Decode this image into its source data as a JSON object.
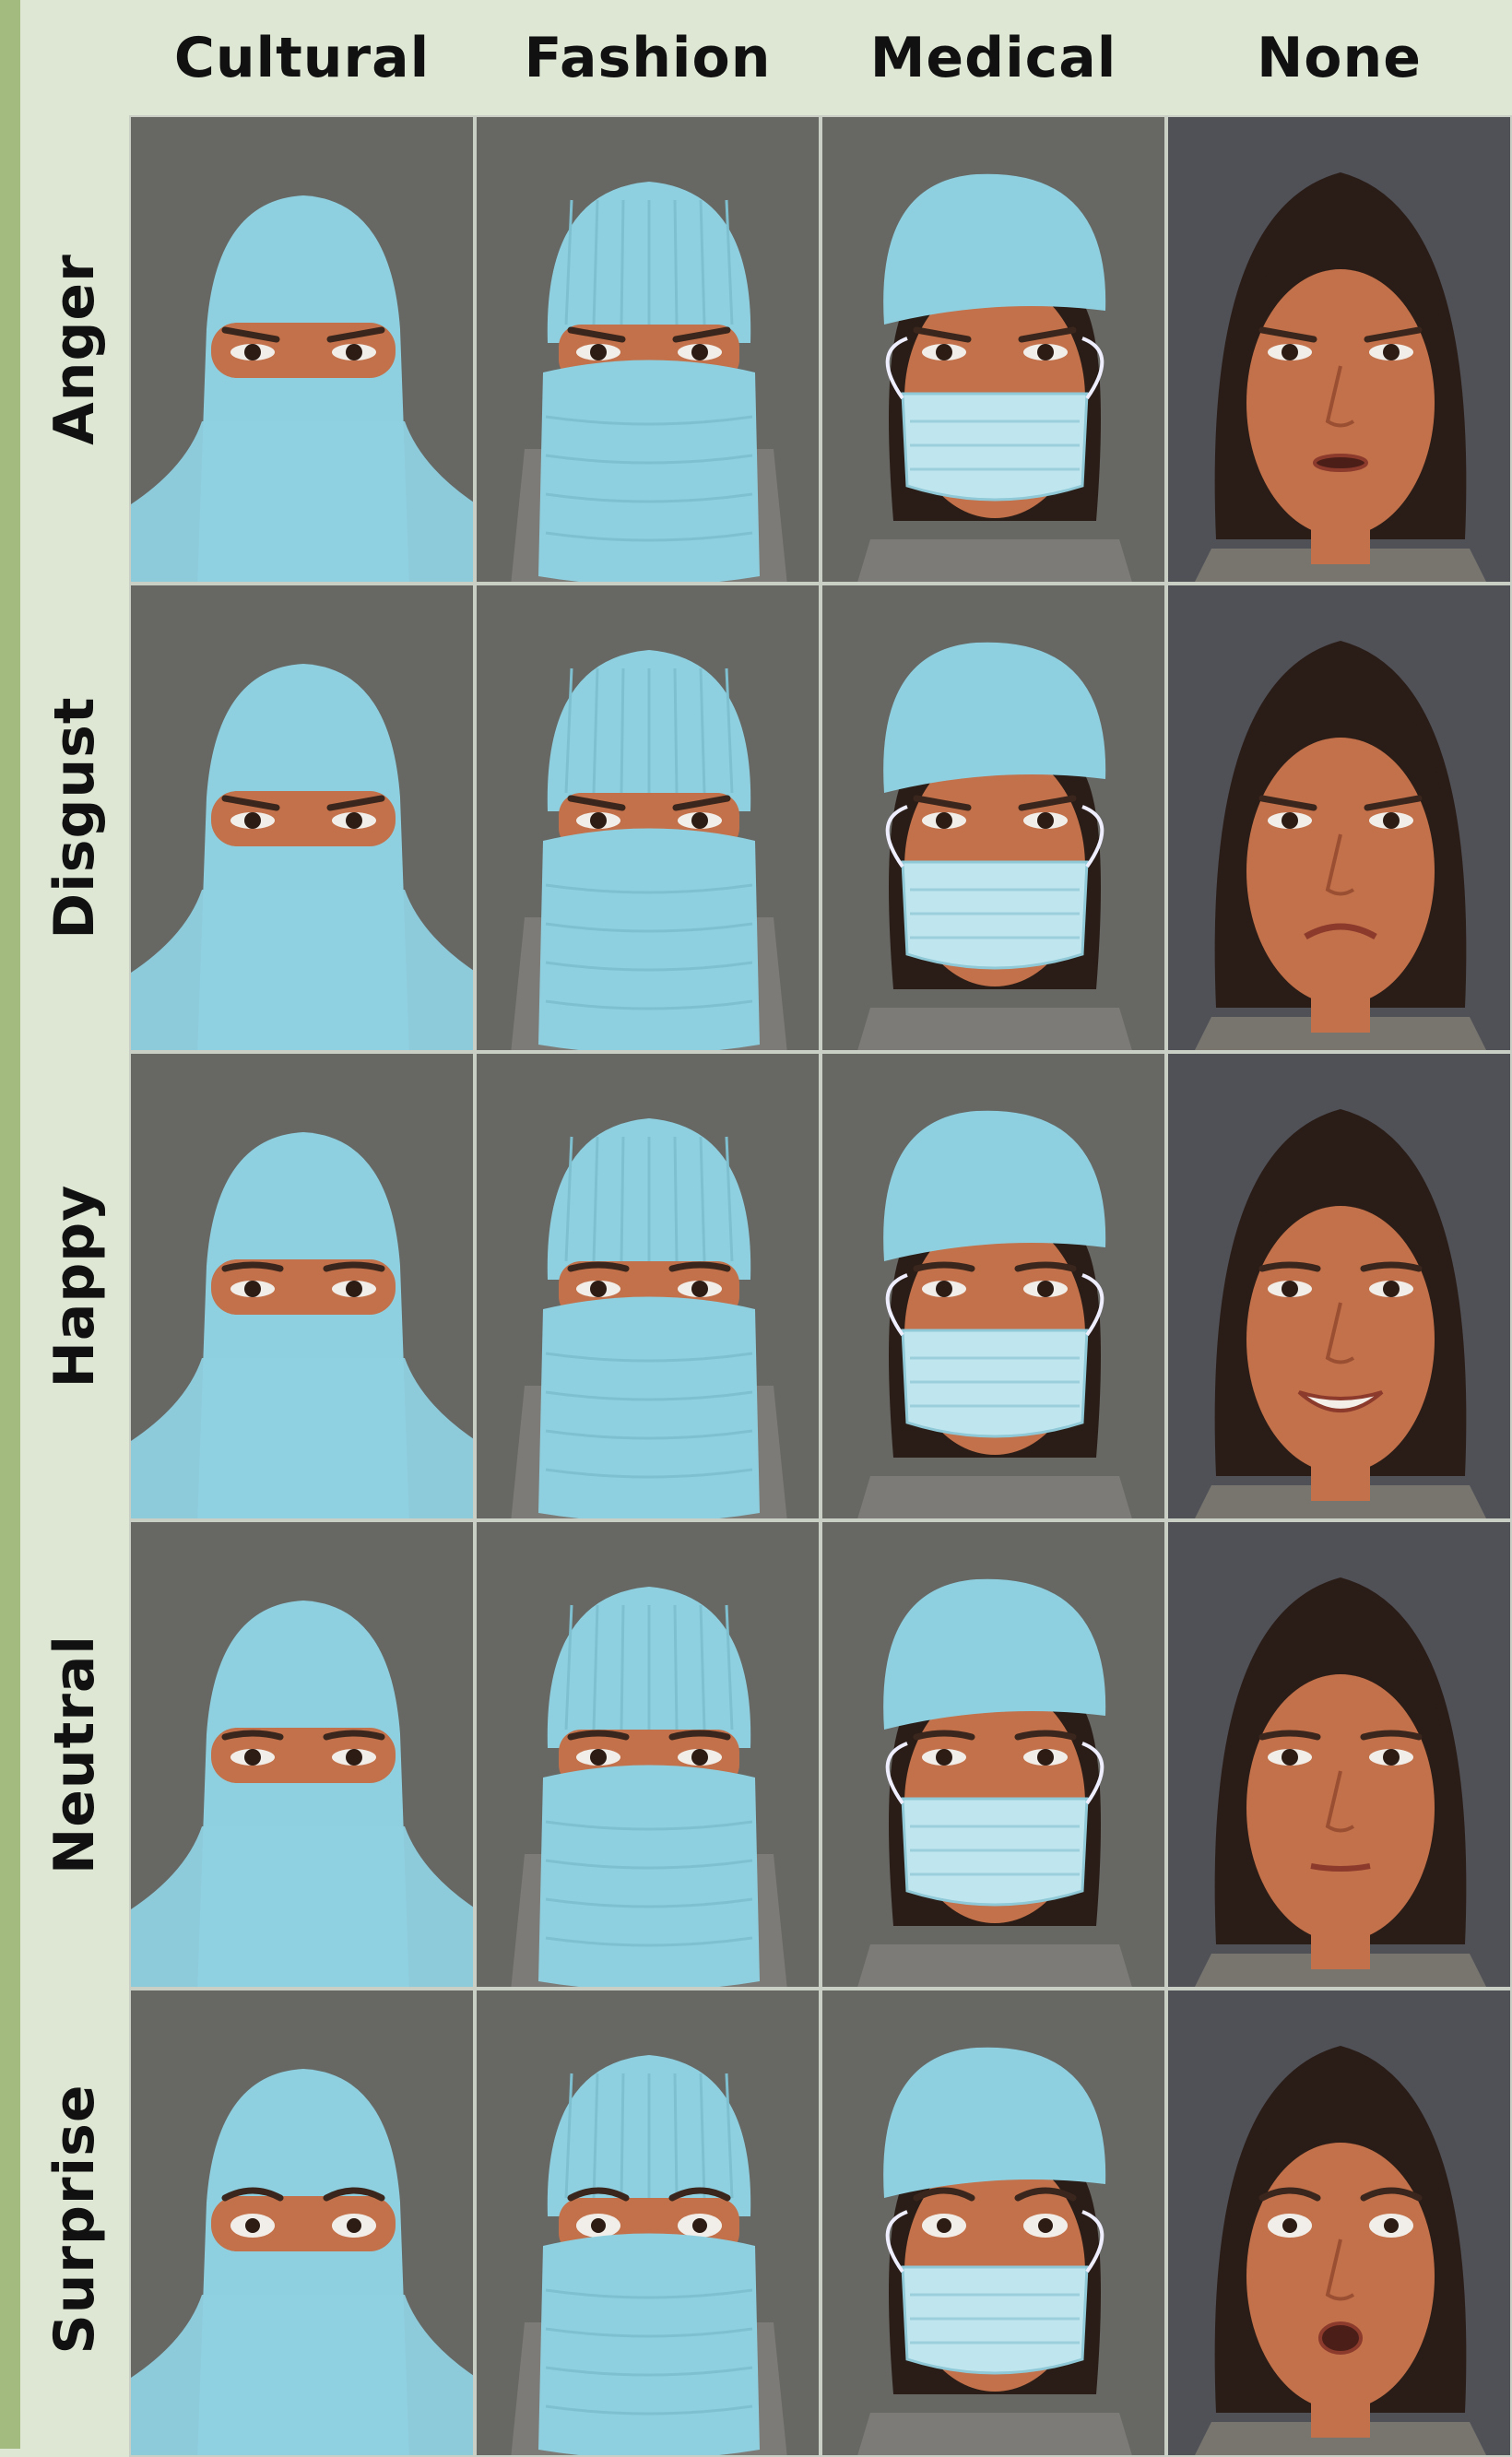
{
  "columns": [
    "Cultural",
    "Fashion",
    "Medical",
    "None"
  ],
  "rows": [
    "Anger",
    "Disgust",
    "Happy",
    "Neutral",
    "Surprise"
  ],
  "colors": {
    "background": "#dde7d3",
    "left_bar": "#a3bb7e",
    "covering": "#8fd0e0",
    "photo_bg_covered": "#676764",
    "photo_bg_none": "#505057",
    "skin": "#c3714a",
    "hair": "#2a1d17"
  }
}
